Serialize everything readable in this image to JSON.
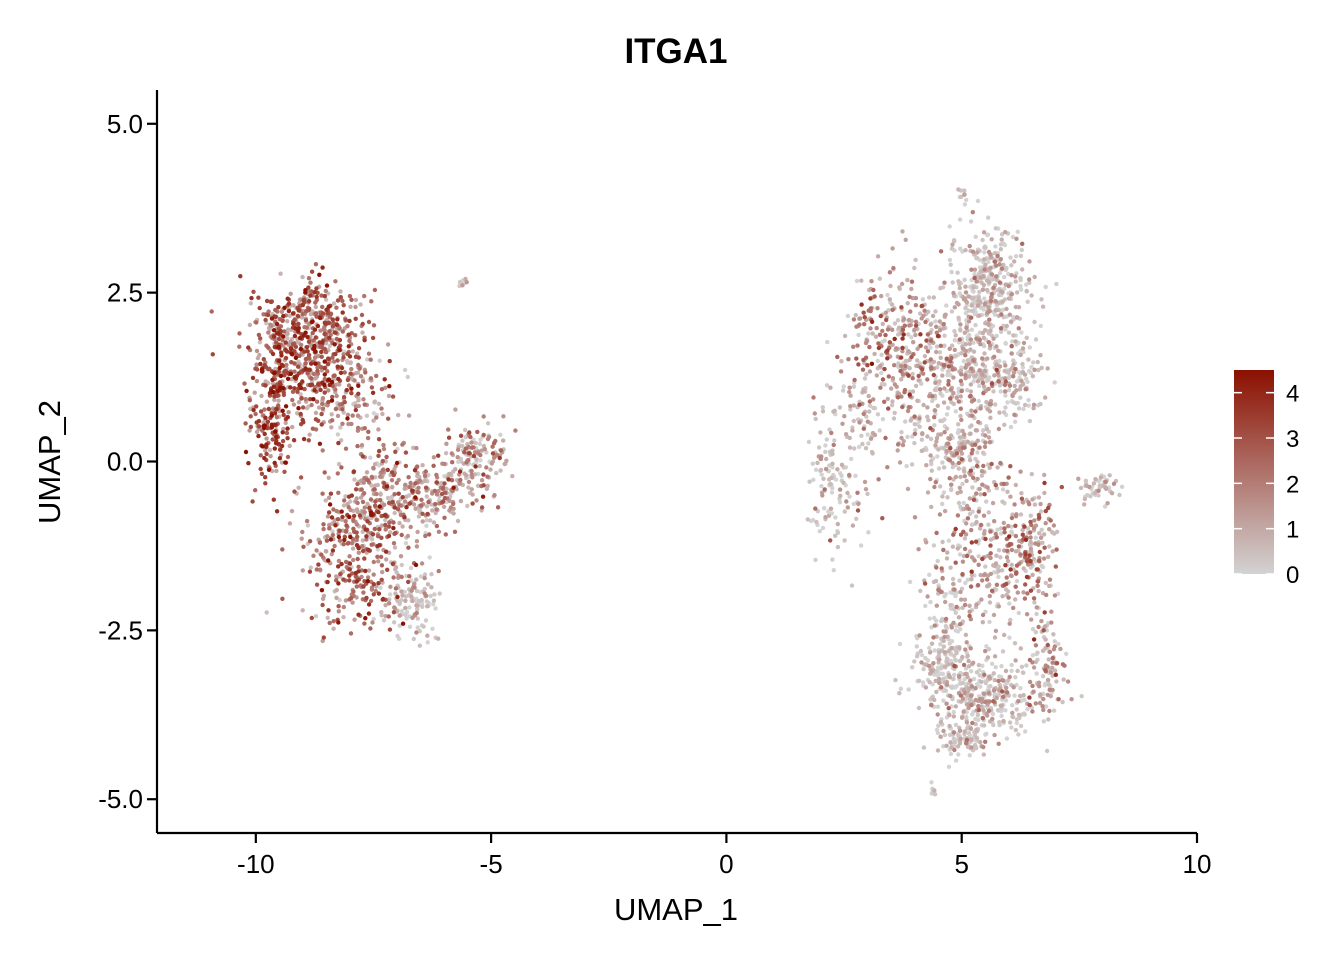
{
  "chart_data": {
    "type": "scatter",
    "title": "ITGA1",
    "xlabel": "UMAP_1",
    "ylabel": "UMAP_2",
    "xlim": [
      -12.1,
      10
    ],
    "ylim": [
      -5.5,
      5.5
    ],
    "xticks": [
      -10,
      -5,
      0,
      5,
      10
    ],
    "xtick_labels": [
      "-10",
      "-5",
      "0",
      "5",
      "10"
    ],
    "yticks": [
      -5,
      -2.5,
      0,
      2.5,
      5
    ],
    "ytick_labels": [
      "-5.0",
      "-2.5",
      "0.0",
      "2.5",
      "5.0"
    ],
    "grid": false,
    "legend": {
      "placement": "right",
      "type": "colorbar",
      "min": 0,
      "max": 4.5,
      "ticks": [
        0,
        1,
        2,
        3,
        4
      ],
      "tick_labels": [
        "0",
        "1",
        "2",
        "3",
        "4"
      ],
      "color_low": "#d3d3d3",
      "color_high": "#8b1000"
    },
    "clusters": [
      {
        "cx": -8.9,
        "cy": 1.6,
        "sx": 0.55,
        "sy": 0.5,
        "n": 520,
        "expr": 3.0,
        "spread": 0.9
      },
      {
        "cx": -9.6,
        "cy": 0.6,
        "sx": 0.25,
        "sy": 0.5,
        "n": 180,
        "expr": 3.4,
        "spread": 0.8
      },
      {
        "cx": -8.8,
        "cy": 2.1,
        "sx": 0.5,
        "sy": 0.2,
        "n": 140,
        "expr": 2.6,
        "spread": 0.9
      },
      {
        "cx": -7.9,
        "cy": 1.0,
        "sx": 0.45,
        "sy": 0.35,
        "n": 120,
        "expr": 1.8,
        "spread": 1.1
      },
      {
        "cx": -7.9,
        "cy": -1.3,
        "sx": 0.55,
        "sy": 0.55,
        "n": 380,
        "expr": 2.5,
        "spread": 1.0
      },
      {
        "cx": -7.3,
        "cy": -0.4,
        "sx": 0.4,
        "sy": 0.4,
        "n": 160,
        "expr": 2.0,
        "spread": 1.0
      },
      {
        "cx": -6.7,
        "cy": -2.1,
        "sx": 0.3,
        "sy": 0.25,
        "n": 120,
        "expr": 0.7,
        "spread": 0.8
      },
      {
        "cx": -6.3,
        "cy": -0.5,
        "sx": 0.4,
        "sy": 0.25,
        "n": 150,
        "expr": 2.0,
        "spread": 1.0
      },
      {
        "cx": -5.4,
        "cy": 0.0,
        "sx": 0.35,
        "sy": 0.3,
        "n": 150,
        "expr": 1.4,
        "spread": 1.0
      },
      {
        "cx": -5.6,
        "cy": 2.65,
        "sx": 0.06,
        "sy": 0.03,
        "n": 8,
        "expr": 0.5,
        "spread": 0.5
      },
      {
        "cx": 3.6,
        "cy": 1.8,
        "sx": 0.5,
        "sy": 0.55,
        "n": 260,
        "expr": 1.9,
        "spread": 1.1
      },
      {
        "cx": 5.6,
        "cy": 2.6,
        "sx": 0.45,
        "sy": 0.45,
        "n": 340,
        "expr": 0.5,
        "spread": 0.8
      },
      {
        "cx": 4.9,
        "cy": 1.5,
        "sx": 0.55,
        "sy": 0.5,
        "n": 300,
        "expr": 0.8,
        "spread": 0.9
      },
      {
        "cx": 6.0,
        "cy": 1.3,
        "sx": 0.35,
        "sy": 0.35,
        "n": 160,
        "expr": 0.5,
        "spread": 0.8
      },
      {
        "cx": 2.3,
        "cy": -0.3,
        "sx": 0.25,
        "sy": 0.55,
        "n": 130,
        "expr": 0.5,
        "spread": 0.8
      },
      {
        "cx": 2.9,
        "cy": 0.7,
        "sx": 0.2,
        "sy": 0.5,
        "n": 60,
        "expr": 0.8,
        "spread": 0.8
      },
      {
        "cx": 5.0,
        "cy": 0.0,
        "sx": 0.45,
        "sy": 0.45,
        "n": 200,
        "expr": 1.0,
        "spread": 0.9
      },
      {
        "cx": 4.2,
        "cy": 0.4,
        "sx": 0.5,
        "sy": 0.2,
        "n": 60,
        "expr": 0.7,
        "spread": 0.8
      },
      {
        "cx": 5.7,
        "cy": -1.4,
        "sx": 0.55,
        "sy": 0.55,
        "n": 260,
        "expr": 1.4,
        "spread": 1.0
      },
      {
        "cx": 6.5,
        "cy": -1.2,
        "sx": 0.25,
        "sy": 0.4,
        "n": 110,
        "expr": 1.8,
        "spread": 1.0
      },
      {
        "cx": 4.7,
        "cy": -2.2,
        "sx": 0.3,
        "sy": 0.4,
        "n": 90,
        "expr": 0.6,
        "spread": 0.8
      },
      {
        "cx": 5.4,
        "cy": -3.5,
        "sx": 0.6,
        "sy": 0.3,
        "n": 350,
        "expr": 0.6,
        "spread": 0.9
      },
      {
        "cx": 4.6,
        "cy": -3.0,
        "sx": 0.3,
        "sy": 0.25,
        "n": 120,
        "expr": 0.4,
        "spread": 0.7
      },
      {
        "cx": 6.8,
        "cy": -3.0,
        "sx": 0.2,
        "sy": 0.45,
        "n": 100,
        "expr": 1.2,
        "spread": 1.0
      },
      {
        "cx": 5.0,
        "cy": -4.1,
        "sx": 0.35,
        "sy": 0.12,
        "n": 80,
        "expr": 0.4,
        "spread": 0.6
      },
      {
        "cx": 7.9,
        "cy": -0.4,
        "sx": 0.2,
        "sy": 0.1,
        "n": 50,
        "expr": 0.5,
        "spread": 0.7
      },
      {
        "cx": 5.0,
        "cy": 3.95,
        "sx": 0.05,
        "sy": 0.08,
        "n": 8,
        "expr": 0.3,
        "spread": 0.4
      },
      {
        "cx": 4.4,
        "cy": -4.85,
        "sx": 0.05,
        "sy": 0.08,
        "n": 6,
        "expr": 0.3,
        "spread": 0.4
      }
    ]
  }
}
